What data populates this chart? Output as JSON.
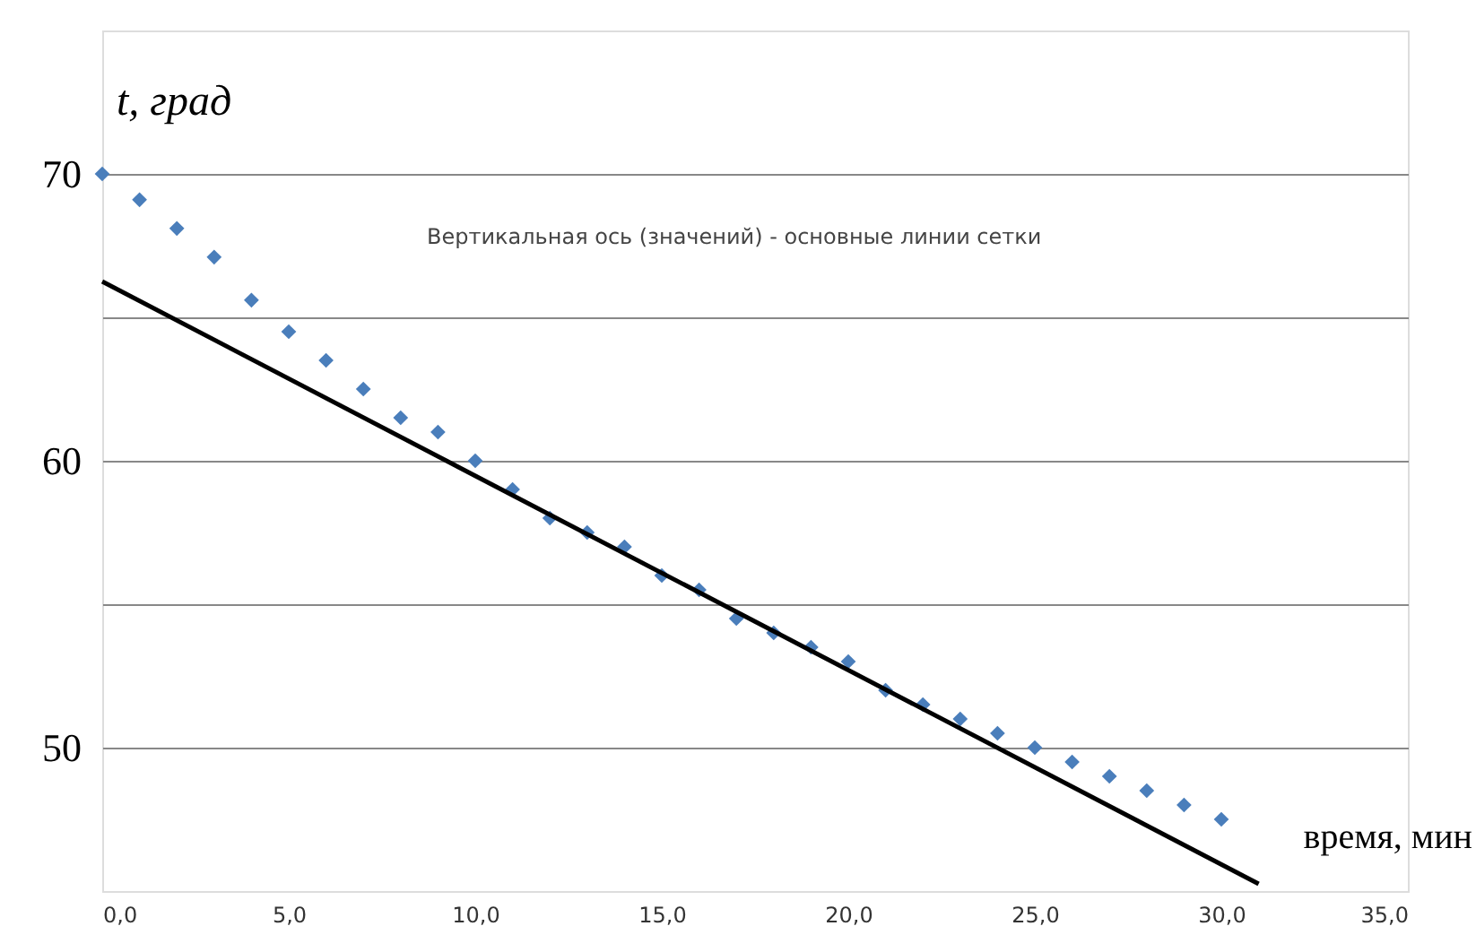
{
  "chart_data": {
    "type": "scatter",
    "xlabel": "время, мин",
    "ylabel": "t, град",
    "annotations": [
      "Вертикальная ось (значений)  - основные линии сетки"
    ],
    "x": [
      0,
      1,
      2,
      3,
      4,
      5,
      6,
      7,
      8,
      9,
      10,
      11,
      12,
      13,
      14,
      15,
      16,
      17,
      18,
      19,
      20,
      21,
      22,
      23,
      24,
      25,
      26,
      27,
      28,
      29,
      30
    ],
    "series": [
      {
        "color": "#4a7ebb",
        "marker": "diamond",
        "values": [
          70.0,
          69.1,
          68.1,
          67.1,
          65.6,
          64.5,
          63.5,
          62.5,
          61.5,
          61.0,
          60.0,
          59.0,
          58.0,
          57.5,
          57.0,
          56.0,
          55.5,
          54.5,
          54.0,
          53.5,
          53.0,
          52.0,
          51.5,
          51.0,
          50.5,
          50.0,
          49.5,
          49.0,
          48.5,
          48.0,
          47.5
        ]
      },
      {
        "type": "line",
        "color": "#000000",
        "marker": "none",
        "line_style": "solid",
        "x": [
          0,
          31
        ],
        "values": [
          66.25,
          45.25
        ]
      }
    ],
    "xlim": [
      0,
      35
    ],
    "xticks": [
      {
        "value": 0,
        "label": "0,0"
      },
      {
        "value": 5,
        "label": "5,0"
      },
      {
        "value": 10,
        "label": "10,0"
      },
      {
        "value": 15,
        "label": "15,0"
      },
      {
        "value": 20,
        "label": "20,0"
      },
      {
        "value": 25,
        "label": "25,0"
      },
      {
        "value": 30,
        "label": "30,0"
      },
      {
        "value": 35,
        "label": "35,0"
      }
    ],
    "ylim": [
      45,
      75
    ],
    "yticks": [
      {
        "value": 50,
        "label": "50"
      },
      {
        "value": 55,
        "label": null
      },
      {
        "value": 60,
        "label": "60"
      },
      {
        "value": 65,
        "label": null
      },
      {
        "value": 70,
        "label": "70"
      }
    ],
    "grid": "y"
  }
}
